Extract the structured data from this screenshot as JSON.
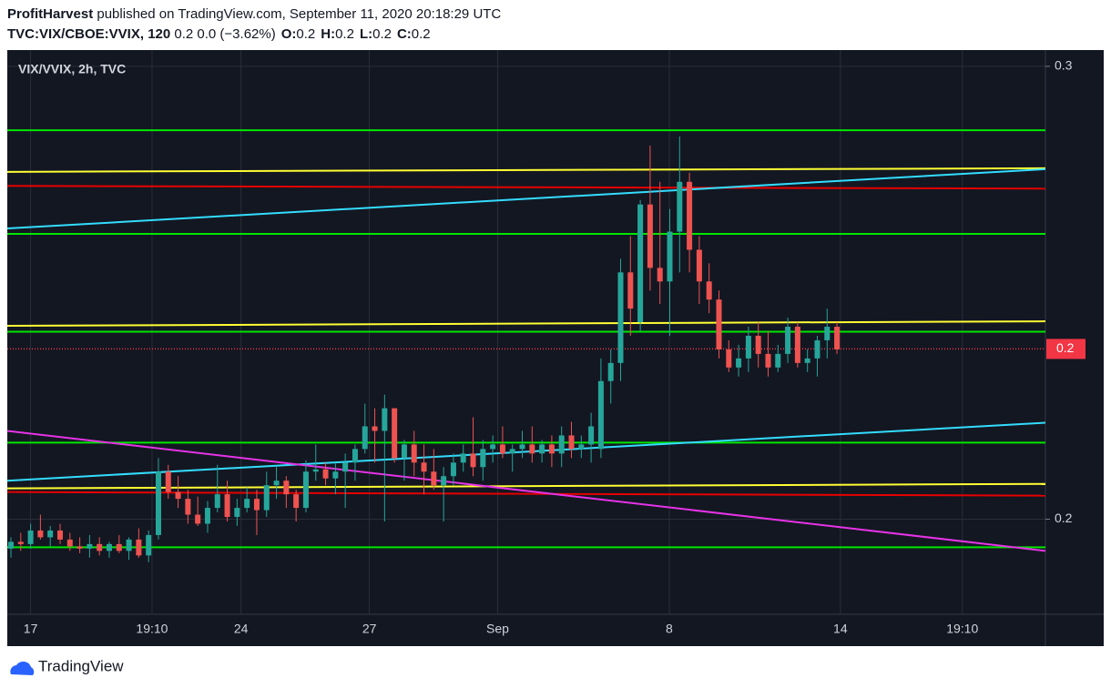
{
  "header": {
    "author": "ProfitHarvest",
    "published": "published on TradingView.com, September 11, 2020 20:18:29 UTC",
    "symbol": "TVC:VIX/CBOE:VVIX, 120",
    "change": "0.2 0.0 (−3.62%)",
    "ohlc": [
      {
        "key": "O:",
        "value": "0.2"
      },
      {
        "key": "H:",
        "value": "0.2"
      },
      {
        "key": "L:",
        "value": "0.2"
      },
      {
        "key": "C:",
        "value": "0.2"
      }
    ]
  },
  "footer": {
    "brand": "TradingView"
  },
  "chart_data": {
    "type": "candlestick",
    "title": "VIX/VVIX, 2h, TVC",
    "up_color": "#26a69a",
    "down_color": "#ef5350",
    "grid": true,
    "xlim": [
      -0.74,
      210.4
    ],
    "xticks": [
      {
        "value": 4,
        "label": "17"
      },
      {
        "value": 28.7,
        "label": "19:10"
      },
      {
        "value": 46.8,
        "label": "24"
      },
      {
        "value": 72.9,
        "label": "27"
      },
      {
        "value": 99,
        "label": "Sep"
      },
      {
        "value": 133.9,
        "label": "8"
      },
      {
        "value": 168.7,
        "label": "14"
      },
      {
        "value": 193.5,
        "label": "19:10"
      }
    ],
    "ylim": [
      0.179,
      0.3036
    ],
    "yticks": [
      0.2,
      0.3
    ],
    "last_price": {
      "value": 0.2376,
      "label": "0.2",
      "color": "#f23645"
    },
    "candles": [
      {
        "x": 0,
        "o": 0.1935,
        "h": 0.196,
        "l": 0.1915,
        "c": 0.195
      },
      {
        "x": 2,
        "o": 0.195,
        "h": 0.197,
        "l": 0.193,
        "c": 0.1945
      },
      {
        "x": 4,
        "o": 0.1945,
        "h": 0.199,
        "l": 0.1935,
        "c": 0.1975
      },
      {
        "x": 6,
        "o": 0.1975,
        "h": 0.201,
        "l": 0.1955,
        "c": 0.196
      },
      {
        "x": 8,
        "o": 0.196,
        "h": 0.1985,
        "l": 0.194,
        "c": 0.1975
      },
      {
        "x": 10,
        "o": 0.1975,
        "h": 0.199,
        "l": 0.1945,
        "c": 0.1955
      },
      {
        "x": 12,
        "o": 0.1955,
        "h": 0.197,
        "l": 0.193,
        "c": 0.194
      },
      {
        "x": 14,
        "o": 0.194,
        "h": 0.196,
        "l": 0.1925,
        "c": 0.1935
      },
      {
        "x": 16,
        "o": 0.1935,
        "h": 0.1965,
        "l": 0.1915,
        "c": 0.1945
      },
      {
        "x": 18,
        "o": 0.1945,
        "h": 0.196,
        "l": 0.192,
        "c": 0.193
      },
      {
        "x": 20,
        "o": 0.193,
        "h": 0.195,
        "l": 0.1915,
        "c": 0.1945
      },
      {
        "x": 22,
        "o": 0.1945,
        "h": 0.1965,
        "l": 0.1925,
        "c": 0.193
      },
      {
        "x": 24,
        "o": 0.193,
        "h": 0.196,
        "l": 0.191,
        "c": 0.1955
      },
      {
        "x": 26,
        "o": 0.1955,
        "h": 0.198,
        "l": 0.1915,
        "c": 0.192
      },
      {
        "x": 28,
        "o": 0.192,
        "h": 0.1975,
        "l": 0.1905,
        "c": 0.1965
      },
      {
        "x": 30,
        "o": 0.1965,
        "h": 0.2135,
        "l": 0.1955,
        "c": 0.2105
      },
      {
        "x": 32,
        "o": 0.2105,
        "h": 0.212,
        "l": 0.2045,
        "c": 0.206
      },
      {
        "x": 34,
        "o": 0.206,
        "h": 0.2095,
        "l": 0.2025,
        "c": 0.2045
      },
      {
        "x": 36,
        "o": 0.2045,
        "h": 0.2065,
        "l": 0.199,
        "c": 0.201
      },
      {
        "x": 38,
        "o": 0.201,
        "h": 0.205,
        "l": 0.1985,
        "c": 0.199
      },
      {
        "x": 40,
        "o": 0.199,
        "h": 0.204,
        "l": 0.197,
        "c": 0.2025
      },
      {
        "x": 42,
        "o": 0.2025,
        "h": 0.212,
        "l": 0.2015,
        "c": 0.2055
      },
      {
        "x": 44,
        "o": 0.2055,
        "h": 0.2085,
        "l": 0.1995,
        "c": 0.2005
      },
      {
        "x": 46,
        "o": 0.2005,
        "h": 0.2045,
        "l": 0.1985,
        "c": 0.2025
      },
      {
        "x": 48,
        "o": 0.2025,
        "h": 0.207,
        "l": 0.2015,
        "c": 0.2045
      },
      {
        "x": 50,
        "o": 0.2045,
        "h": 0.2065,
        "l": 0.1965,
        "c": 0.202
      },
      {
        "x": 52,
        "o": 0.202,
        "h": 0.2105,
        "l": 0.2005,
        "c": 0.2075
      },
      {
        "x": 54,
        "o": 0.2075,
        "h": 0.2115,
        "l": 0.2045,
        "c": 0.2085
      },
      {
        "x": 56,
        "o": 0.2085,
        "h": 0.2095,
        "l": 0.2025,
        "c": 0.2055
      },
      {
        "x": 58,
        "o": 0.2055,
        "h": 0.2065,
        "l": 0.1995,
        "c": 0.2025
      },
      {
        "x": 60,
        "o": 0.2025,
        "h": 0.213,
        "l": 0.2015,
        "c": 0.2105
      },
      {
        "x": 62,
        "o": 0.2105,
        "h": 0.2165,
        "l": 0.2085,
        "c": 0.211
      },
      {
        "x": 64,
        "o": 0.211,
        "h": 0.2125,
        "l": 0.2075,
        "c": 0.209
      },
      {
        "x": 66,
        "o": 0.209,
        "h": 0.2125,
        "l": 0.2055,
        "c": 0.2105
      },
      {
        "x": 68,
        "o": 0.2105,
        "h": 0.2145,
        "l": 0.2025,
        "c": 0.2125
      },
      {
        "x": 70,
        "o": 0.2125,
        "h": 0.2165,
        "l": 0.2085,
        "c": 0.2155
      },
      {
        "x": 72,
        "o": 0.2155,
        "h": 0.2255,
        "l": 0.2145,
        "c": 0.2205
      },
      {
        "x": 74,
        "o": 0.2205,
        "h": 0.2245,
        "l": 0.2125,
        "c": 0.2195
      },
      {
        "x": 76,
        "o": 0.2195,
        "h": 0.2275,
        "l": 0.1995,
        "c": 0.2245
      },
      {
        "x": 78,
        "o": 0.2245,
        "h": 0.2245,
        "l": 0.2125,
        "c": 0.2135
      },
      {
        "x": 80,
        "o": 0.2135,
        "h": 0.2175,
        "l": 0.2085,
        "c": 0.2165
      },
      {
        "x": 82,
        "o": 0.2165,
        "h": 0.2195,
        "l": 0.2095,
        "c": 0.2125
      },
      {
        "x": 84,
        "o": 0.2125,
        "h": 0.2165,
        "l": 0.2055,
        "c": 0.2105
      },
      {
        "x": 86,
        "o": 0.2105,
        "h": 0.2155,
        "l": 0.2065,
        "c": 0.2075
      },
      {
        "x": 88,
        "o": 0.2075,
        "h": 0.2115,
        "l": 0.1995,
        "c": 0.2095
      },
      {
        "x": 90,
        "o": 0.2095,
        "h": 0.2145,
        "l": 0.2075,
        "c": 0.2125
      },
      {
        "x": 92,
        "o": 0.2125,
        "h": 0.2165,
        "l": 0.2105,
        "c": 0.2145
      },
      {
        "x": 94,
        "o": 0.2145,
        "h": 0.2225,
        "l": 0.2095,
        "c": 0.2115
      },
      {
        "x": 96,
        "o": 0.2115,
        "h": 0.2175,
        "l": 0.2085,
        "c": 0.2155
      },
      {
        "x": 98,
        "o": 0.2155,
        "h": 0.2185,
        "l": 0.2125,
        "c": 0.2165
      },
      {
        "x": 100,
        "o": 0.2165,
        "h": 0.2205,
        "l": 0.2135,
        "c": 0.2145
      },
      {
        "x": 102,
        "o": 0.2145,
        "h": 0.2165,
        "l": 0.2105,
        "c": 0.2155
      },
      {
        "x": 104,
        "o": 0.2155,
        "h": 0.2195,
        "l": 0.2135,
        "c": 0.2165
      },
      {
        "x": 106,
        "o": 0.2165,
        "h": 0.2205,
        "l": 0.2125,
        "c": 0.2145
      },
      {
        "x": 108,
        "o": 0.2145,
        "h": 0.2175,
        "l": 0.2125,
        "c": 0.2165
      },
      {
        "x": 110,
        "o": 0.2165,
        "h": 0.2185,
        "l": 0.2115,
        "c": 0.2145
      },
      {
        "x": 112,
        "o": 0.2145,
        "h": 0.2205,
        "l": 0.2115,
        "c": 0.2185
      },
      {
        "x": 114,
        "o": 0.2185,
        "h": 0.2215,
        "l": 0.2135,
        "c": 0.2155
      },
      {
        "x": 116,
        "o": 0.2155,
        "h": 0.2185,
        "l": 0.2135,
        "c": 0.2165
      },
      {
        "x": 118,
        "o": 0.2165,
        "h": 0.2235,
        "l": 0.2125,
        "c": 0.2205
      },
      {
        "x": 120,
        "o": 0.2155,
        "h": 0.2355,
        "l": 0.2135,
        "c": 0.2305
      },
      {
        "x": 122,
        "o": 0.2305,
        "h": 0.2375,
        "l": 0.2255,
        "c": 0.2345
      },
      {
        "x": 124,
        "o": 0.2345,
        "h": 0.2575,
        "l": 0.2305,
        "c": 0.2545
      },
      {
        "x": 126,
        "o": 0.2545,
        "h": 0.2625,
        "l": 0.2405,
        "c": 0.2465
      },
      {
        "x": 128,
        "o": 0.2435,
        "h": 0.2705,
        "l": 0.2415,
        "c": 0.2695
      },
      {
        "x": 130,
        "o": 0.2695,
        "h": 0.2825,
        "l": 0.2505,
        "c": 0.2555
      },
      {
        "x": 132,
        "o": 0.2555,
        "h": 0.2745,
        "l": 0.2475,
        "c": 0.2525
      },
      {
        "x": 134,
        "o": 0.2525,
        "h": 0.2685,
        "l": 0.2405,
        "c": 0.2635
      },
      {
        "x": 136,
        "o": 0.2635,
        "h": 0.2845,
        "l": 0.2545,
        "c": 0.2745
      },
      {
        "x": 138,
        "o": 0.2745,
        "h": 0.2765,
        "l": 0.2545,
        "c": 0.2595
      },
      {
        "x": 140,
        "o": 0.2595,
        "h": 0.2625,
        "l": 0.2475,
        "c": 0.2525
      },
      {
        "x": 142,
        "o": 0.2525,
        "h": 0.2565,
        "l": 0.2455,
        "c": 0.2485
      },
      {
        "x": 144,
        "o": 0.2485,
        "h": 0.2505,
        "l": 0.2355,
        "c": 0.2375
      },
      {
        "x": 146,
        "o": 0.2375,
        "h": 0.2395,
        "l": 0.2325,
        "c": 0.2335
      },
      {
        "x": 148,
        "o": 0.2335,
        "h": 0.2385,
        "l": 0.2315,
        "c": 0.2355
      },
      {
        "x": 150,
        "o": 0.2355,
        "h": 0.2425,
        "l": 0.2325,
        "c": 0.2405
      },
      {
        "x": 152,
        "o": 0.2405,
        "h": 0.2435,
        "l": 0.2335,
        "c": 0.2365
      },
      {
        "x": 154,
        "o": 0.2365,
        "h": 0.2415,
        "l": 0.2315,
        "c": 0.2335
      },
      {
        "x": 156,
        "o": 0.2335,
        "h": 0.2385,
        "l": 0.2325,
        "c": 0.2365
      },
      {
        "x": 158,
        "o": 0.2365,
        "h": 0.2445,
        "l": 0.2345,
        "c": 0.2425
      },
      {
        "x": 160,
        "o": 0.2425,
        "h": 0.2435,
        "l": 0.2335,
        "c": 0.2345
      },
      {
        "x": 162,
        "o": 0.2345,
        "h": 0.2375,
        "l": 0.2325,
        "c": 0.2355
      },
      {
        "x": 164,
        "o": 0.2355,
        "h": 0.2405,
        "l": 0.2315,
        "c": 0.2395
      },
      {
        "x": 166,
        "o": 0.2395,
        "h": 0.2465,
        "l": 0.2355,
        "c": 0.2425
      },
      {
        "x": 168,
        "o": 0.2425,
        "h": 0.2435,
        "l": 0.2365,
        "c": 0.2375
      }
    ],
    "drawings": [
      {
        "color": "#00e600",
        "x1": -0.74,
        "y1": 0.2859,
        "x2": 210.4,
        "y2": 0.2859
      },
      {
        "color": "#00e600",
        "x1": -0.74,
        "y1": 0.263,
        "x2": 210.4,
        "y2": 0.263
      },
      {
        "color": "#00e600",
        "x1": -0.74,
        "y1": 0.2414,
        "x2": 210.4,
        "y2": 0.2414
      },
      {
        "color": "#00e600",
        "x1": -0.74,
        "y1": 0.2169,
        "x2": 210.4,
        "y2": 0.2169
      },
      {
        "color": "#00e600",
        "x1": -0.74,
        "y1": 0.1938,
        "x2": 210.4,
        "y2": 0.1938
      },
      {
        "color": "#e60000",
        "x1": -0.74,
        "y1": 0.2736,
        "x2": 210.4,
        "y2": 0.273
      },
      {
        "color": "#e60000",
        "x1": -0.74,
        "y1": 0.206,
        "x2": 210.4,
        "y2": 0.2052
      },
      {
        "color": "#ffff33",
        "x1": -0.74,
        "y1": 0.2767,
        "x2": 210.4,
        "y2": 0.2775
      },
      {
        "color": "#ffff33",
        "x1": -0.74,
        "y1": 0.2427,
        "x2": 210.4,
        "y2": 0.2437
      },
      {
        "color": "#ffff33",
        "x1": -0.74,
        "y1": 0.2068,
        "x2": 210.4,
        "y2": 0.2078
      },
      {
        "color": "#33ddff",
        "x1": -0.74,
        "y1": 0.2642,
        "x2": 210.4,
        "y2": 0.2773
      },
      {
        "color": "#33ddff",
        "x1": -0.74,
        "y1": 0.2085,
        "x2": 210.4,
        "y2": 0.2213
      },
      {
        "color": "#e633e6",
        "x1": -0.74,
        "y1": 0.2195,
        "x2": 210.4,
        "y2": 0.193
      }
    ]
  }
}
